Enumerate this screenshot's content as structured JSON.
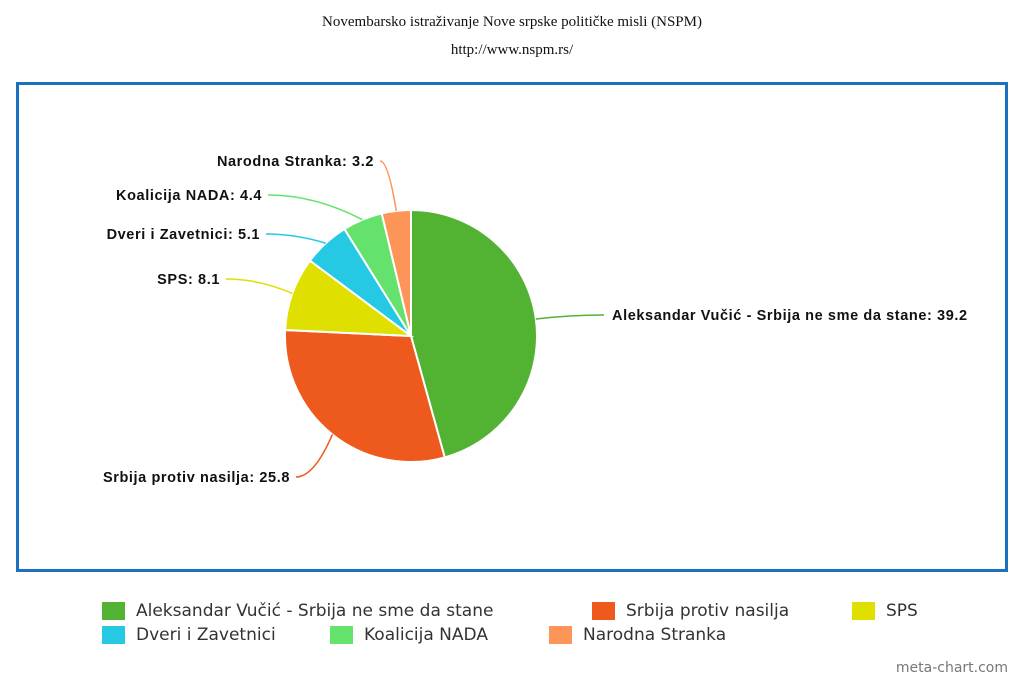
{
  "chart_data": {
    "type": "pie",
    "title": "Novembarsko istraživanje Nove srpske političke misli (NSPM)",
    "subtitle": "http://www.nspm.rs/",
    "categories": [
      "Aleksandar Vučić - Srbija ne sme da stane",
      "Srbija protiv nasilja",
      "SPS",
      "Dveri i Zavetnici",
      "Koalicija NADA",
      "Narodna Stranka"
    ],
    "values": [
      39.2,
      25.8,
      8.1,
      5.1,
      4.4,
      3.2
    ],
    "colors": [
      "#52b232",
      "#ee5a1d",
      "#dfe000",
      "#25c9e4",
      "#65e26e",
      "#fd9458"
    ],
    "legend": "bottom",
    "start_angle": "top, clockwise"
  },
  "watermark": "meta-chart.com"
}
